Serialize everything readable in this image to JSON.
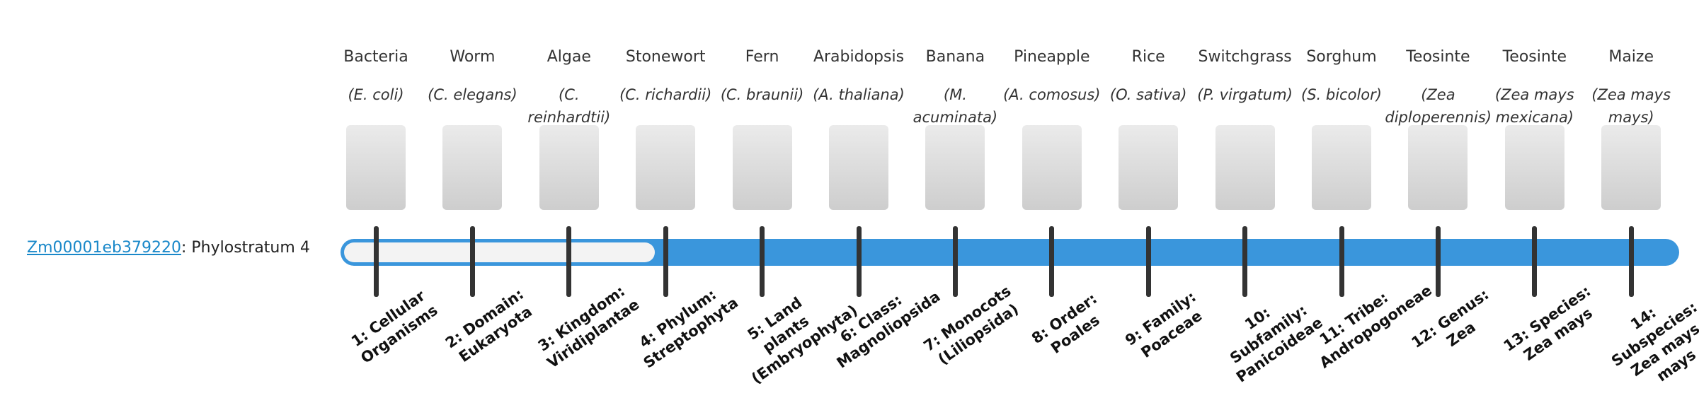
{
  "gene": {
    "id": "Zm00001eb379220",
    "label": "Phylostratum",
    "value": 4
  },
  "organisms": [
    {
      "name": "Bacteria",
      "species": "(E. coli)"
    },
    {
      "name": "Worm",
      "species": "(C. elegans)"
    },
    {
      "name": "Algae",
      "species": "(C. reinhardtii)"
    },
    {
      "name": "Stonewort",
      "species": "(C. richardii)"
    },
    {
      "name": "Fern",
      "species": "(C. braunii)"
    },
    {
      "name": "Arabidopsis",
      "species": "(A. thaliana)"
    },
    {
      "name": "Banana",
      "species": "(M. acuminata)"
    },
    {
      "name": "Pineapple",
      "species": "(A. comosus)"
    },
    {
      "name": "Rice",
      "species": "(O. sativa)"
    },
    {
      "name": "Switchgrass",
      "species": "(P. virgatum)"
    },
    {
      "name": "Sorghum",
      "species": "(S. bicolor)"
    },
    {
      "name": "Teosinte",
      "species": "(Zea diploperennis)"
    },
    {
      "name": "Teosinte",
      "species": "(Zea mays mexicana)"
    },
    {
      "name": "Maize",
      "species": "(Zea mays mays)"
    }
  ],
  "strata": [
    "1: Cellular Organisms",
    "2: Domain: Eukaryota",
    "3: Kingdom: Viridiplantae",
    "4: Phylum: Streptophyta",
    "5: Land plants (Embryophyta)",
    "6: Class: Magnoliopsida",
    "7: Monocots (Liliopsida)",
    "8: Order: Poales",
    "9: Family: Poaceae",
    "10: Subfamily: Panicoideae",
    "11: Tribe: Andropogoneae",
    "12: Genus: Zea",
    "13: Species: Zea mays",
    "14: Subspecies: Zea mays mays"
  ]
}
